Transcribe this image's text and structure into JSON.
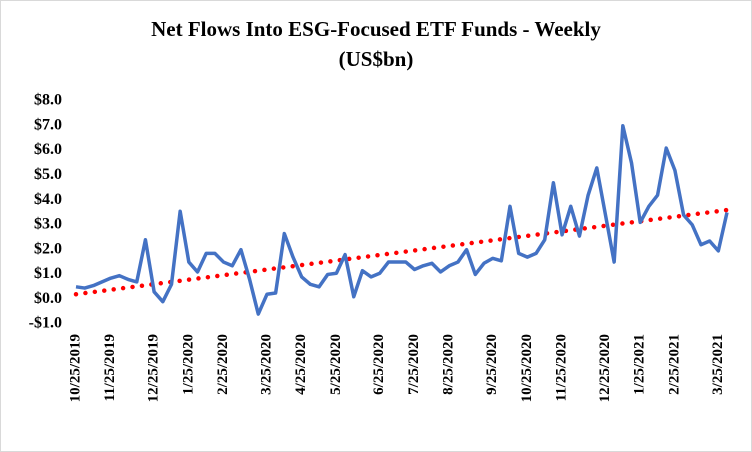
{
  "chart_data": {
    "type": "line",
    "title": "Net Flows Into ESG-Focused ETF Funds - Weekly",
    "subtitle": "(US$bn)",
    "categories": [
      "10/25/2019",
      null,
      null,
      null,
      "11/25/2019",
      null,
      null,
      null,
      null,
      "12/25/2019",
      null,
      null,
      null,
      "1/25/2020",
      null,
      null,
      null,
      "2/25/2020",
      null,
      null,
      null,
      null,
      "3/25/2020",
      null,
      null,
      null,
      "4/25/2020",
      null,
      null,
      null,
      "5/25/2020",
      null,
      null,
      null,
      null,
      "6/25/2020",
      null,
      null,
      null,
      "7/25/2020",
      null,
      null,
      null,
      "8/25/2020",
      null,
      null,
      null,
      null,
      "9/25/2020",
      null,
      null,
      null,
      "10/25/2020",
      null,
      null,
      null,
      "11/25/2020",
      null,
      null,
      null,
      null,
      "12/25/2020",
      null,
      null,
      null,
      "1/25/2021",
      null,
      null,
      null,
      "2/25/2021",
      null,
      null,
      null,
      null,
      "3/25/2021",
      null
    ],
    "series": [
      {
        "color": "#4472c4",
        "values": [
          0.5,
          0.45,
          0.55,
          0.7,
          0.85,
          0.95,
          0.8,
          0.7,
          2.4,
          0.3,
          -0.1,
          0.6,
          3.55,
          1.5,
          1.1,
          1.85,
          1.85,
          1.5,
          1.35,
          2.0,
          0.8,
          -0.6,
          0.2,
          0.25,
          2.65,
          1.7,
          0.9,
          0.6,
          0.5,
          1.0,
          1.05,
          1.8,
          0.1,
          1.15,
          0.9,
          1.05,
          1.5,
          1.5,
          1.5,
          1.2,
          1.35,
          1.45,
          1.1,
          1.35,
          1.5,
          2.0,
          1.0,
          1.45,
          1.65,
          1.55,
          3.75,
          1.85,
          1.7,
          1.85,
          2.4,
          4.7,
          2.6,
          3.75,
          2.55,
          4.2,
          5.3,
          3.4,
          1.5,
          7.0,
          5.5,
          3.1,
          3.75,
          4.2,
          6.1,
          5.2,
          3.4,
          3.0,
          2.2,
          2.35,
          1.95,
          3.5
        ]
      }
    ],
    "trendline": {
      "color": "#ff0000",
      "start": 0.2,
      "end": 3.6
    },
    "ylim": [
      -1,
      8
    ],
    "yticks": [
      {
        "value": -1,
        "label": "-$1.0"
      },
      {
        "value": 0,
        "label": "$0.0"
      },
      {
        "value": 1,
        "label": "$1.0"
      },
      {
        "value": 2,
        "label": "$2.0"
      },
      {
        "value": 3,
        "label": "$3.0"
      },
      {
        "value": 4,
        "label": "$4.0"
      },
      {
        "value": 5,
        "label": "$5.0"
      },
      {
        "value": 6,
        "label": "$6.0"
      },
      {
        "value": 7,
        "label": "$7.0"
      },
      {
        "value": 8,
        "label": "$8.0"
      }
    ],
    "grid": false
  }
}
